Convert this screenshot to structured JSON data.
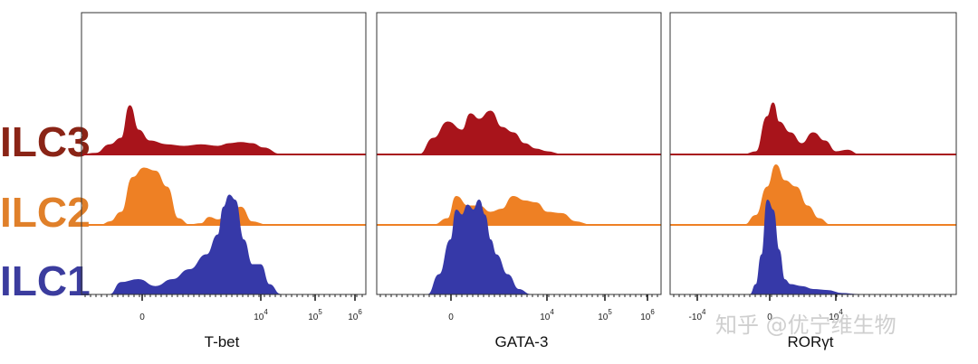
{
  "colors": {
    "ILC3": "#a8141b",
    "ILC2": "#ee8024",
    "ILC1": "#3639a8",
    "ILC3_text": "#8a2416",
    "ILC2_text": "#e0802a",
    "ILC1_text": "#3b3c9e"
  },
  "row_labels": [
    "ILC3",
    "ILC2",
    "ILC1"
  ],
  "watermark": "知乎 @优宁维生物",
  "chart_data": [
    {
      "type": "area",
      "title": "",
      "xlabel": "T-bet",
      "x_scale": "biexponential",
      "tick_labels": [
        "0",
        "10^4",
        "10^5",
        "10^6"
      ],
      "tick_display": [
        {
          "base": "0",
          "exp": ""
        },
        {
          "base": "10",
          "exp": "4"
        },
        {
          "base": "10",
          "exp": "5"
        },
        {
          "base": "10",
          "exp": "6"
        }
      ],
      "series": [
        {
          "name": "ILC3",
          "x": [
            0,
            0.05,
            0.1,
            0.14,
            0.17,
            0.2,
            0.24,
            0.3,
            0.36,
            0.42,
            0.48,
            0.52,
            0.56,
            0.6,
            0.64,
            0.7
          ],
          "values": [
            0,
            0.02,
            0.18,
            0.3,
            0.9,
            0.45,
            0.25,
            0.18,
            0.15,
            0.18,
            0.15,
            0.2,
            0.22,
            0.2,
            0.12,
            0
          ]
        },
        {
          "name": "ILC2",
          "x": [
            0,
            0.07,
            0.1,
            0.14,
            0.18,
            0.22,
            0.26,
            0.3,
            0.34,
            0.38,
            0.42,
            0.45,
            0.48,
            0.52,
            0.56,
            0.6,
            0.65
          ],
          "values": [
            0,
            0,
            0.05,
            0.2,
            0.75,
            0.9,
            0.85,
            0.6,
            0.1,
            0,
            0.02,
            0.12,
            0.08,
            0.2,
            0.28,
            0.05,
            0
          ]
        },
        {
          "name": "ILC1",
          "x": [
            0,
            0.1,
            0.14,
            0.2,
            0.26,
            0.32,
            0.38,
            0.44,
            0.48,
            0.5,
            0.52,
            0.54,
            0.57,
            0.6,
            0.63,
            0.66,
            0.7
          ],
          "values": [
            0,
            0,
            0.12,
            0.15,
            0.08,
            0.15,
            0.25,
            0.4,
            0.6,
            0.88,
            1.0,
            0.95,
            0.55,
            0.3,
            0.3,
            0.1,
            0
          ]
        }
      ]
    },
    {
      "type": "area",
      "title": "",
      "xlabel": "GATA-3",
      "x_scale": "biexponential",
      "tick_labels": [
        "0",
        "10^4",
        "10^5",
        "10^6"
      ],
      "tick_display": [
        {
          "base": "0",
          "exp": ""
        },
        {
          "base": "10",
          "exp": "4"
        },
        {
          "base": "10",
          "exp": "5"
        },
        {
          "base": "10",
          "exp": "6"
        }
      ],
      "series": [
        {
          "name": "ILC3",
          "x": [
            0,
            0.15,
            0.2,
            0.25,
            0.3,
            0.33,
            0.36,
            0.4,
            0.44,
            0.48,
            0.52,
            0.56,
            0.6,
            0.65
          ],
          "values": [
            0,
            0,
            0.3,
            0.6,
            0.45,
            0.75,
            0.65,
            0.8,
            0.5,
            0.4,
            0.2,
            0.1,
            0.05,
            0
          ]
        },
        {
          "name": "ILC2",
          "x": [
            0,
            0.2,
            0.25,
            0.28,
            0.32,
            0.36,
            0.4,
            0.44,
            0.48,
            0.52,
            0.56,
            0.6,
            0.65,
            0.7,
            0.75
          ],
          "values": [
            0,
            0,
            0.1,
            0.45,
            0.3,
            0.3,
            0.2,
            0.25,
            0.45,
            0.38,
            0.35,
            0.2,
            0.18,
            0.05,
            0
          ]
        },
        {
          "name": "ILC1",
          "x": [
            0,
            0.18,
            0.22,
            0.26,
            0.28,
            0.3,
            0.32,
            0.34,
            0.36,
            0.38,
            0.4,
            0.42,
            0.46,
            0.5,
            0.54
          ],
          "values": [
            0,
            0,
            0.2,
            0.55,
            0.85,
            0.8,
            0.9,
            0.85,
            0.95,
            0.8,
            0.55,
            0.4,
            0.2,
            0.05,
            0
          ]
        }
      ]
    },
    {
      "type": "area",
      "title": "",
      "xlabel": "RORγt",
      "x_scale": "biexponential",
      "tick_labels": [
        "-10^4",
        "0",
        "10^4"
      ],
      "tick_display": [
        {
          "base": "-10",
          "exp": "4"
        },
        {
          "base": "0",
          "exp": ""
        },
        {
          "base": "10",
          "exp": "4"
        }
      ],
      "series": [
        {
          "name": "ILC3",
          "x": [
            0,
            0.26,
            0.3,
            0.34,
            0.36,
            0.38,
            0.42,
            0.46,
            0.5,
            0.54,
            0.58,
            0.62,
            0.66,
            0.7,
            0.75
          ],
          "values": [
            0,
            0,
            0.05,
            0.7,
            0.95,
            0.6,
            0.4,
            0.2,
            0.4,
            0.25,
            0.05,
            0.08,
            0,
            0,
            0
          ]
        },
        {
          "name": "ILC2",
          "x": [
            0,
            0.26,
            0.3,
            0.34,
            0.37,
            0.4,
            0.44,
            0.48,
            0.52,
            0.56,
            0.6
          ],
          "values": [
            0,
            0,
            0.15,
            0.6,
            0.95,
            0.7,
            0.6,
            0.3,
            0.1,
            0,
            0
          ]
        },
        {
          "name": "ILC1",
          "x": [
            0,
            0.28,
            0.3,
            0.32,
            0.34,
            0.36,
            0.38,
            0.4,
            0.42,
            0.46,
            0.5,
            0.55,
            0.6,
            0.66
          ],
          "values": [
            0,
            0,
            0.1,
            0.4,
            0.95,
            0.85,
            0.45,
            0.15,
            0.1,
            0.08,
            0.05,
            0.04,
            0.01,
            0
          ]
        }
      ]
    }
  ]
}
